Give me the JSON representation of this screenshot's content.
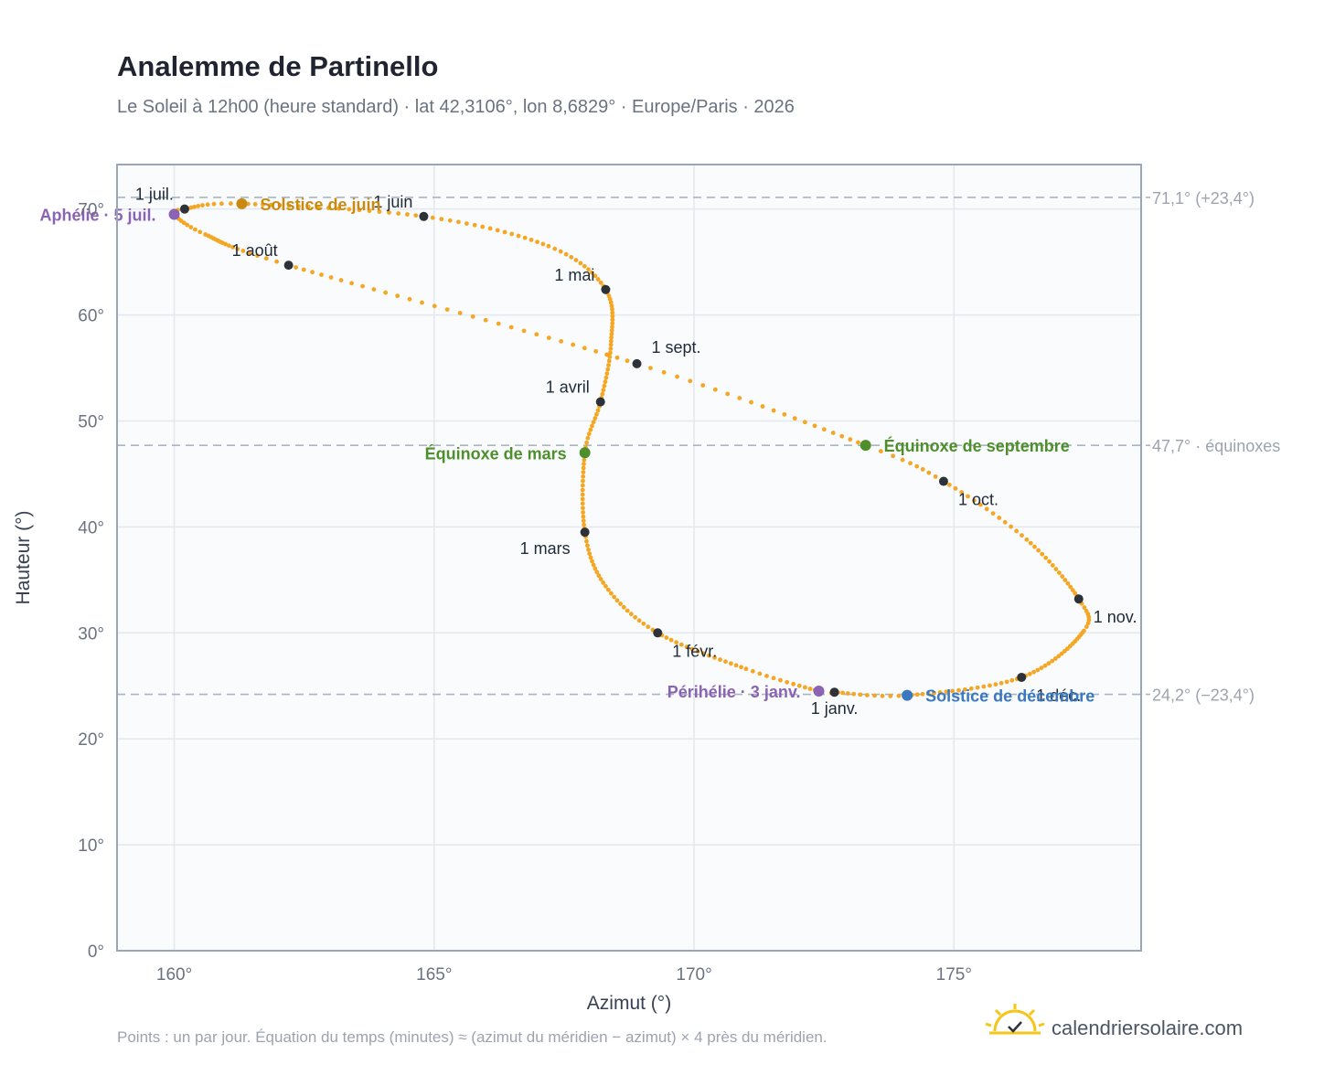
{
  "title": "Analemme de Partinello",
  "subtitle": "Le Soleil à 12h00 (heure standard) · lat 42,3106°, lon 8,6829° · Europe/Paris · 2026",
  "footnote": "Points : un par jour. Équation du temps (minutes) ≈ (azimut du méridien − azimut) × 4 près du méridien.",
  "brand": "calendriersolaire.com",
  "colors": {
    "curve": "#f5a623",
    "month_marker": "#2d3138",
    "aphelion": "#8b63b5",
    "perihelion": "#8b63b5",
    "june_solstice": "#c98a10",
    "december_solstice": "#3a78bf",
    "equinox": "#4e8f2c",
    "reference_line": "#aab4c2",
    "plot_bg": "#f9fbfd",
    "grid": "#e3e8ee",
    "frame": "#9aa5b5",
    "brand_icon": "#f5c518"
  },
  "chart_data": {
    "type": "scatter",
    "xlabel": "Azimut (°)",
    "ylabel": "Hauteur (°)",
    "xlim": [
      158.9,
      178.6
    ],
    "ylim": [
      0,
      74.2
    ],
    "x_ticks": [
      160,
      165,
      170,
      175
    ],
    "x_tick_labels": [
      "160°",
      "165°",
      "170°",
      "175°"
    ],
    "y_ticks": [
      0,
      10,
      20,
      30,
      40,
      50,
      60,
      70
    ],
    "y_tick_labels": [
      "0°",
      "10°",
      "20°",
      "30°",
      "40°",
      "50°",
      "60°",
      "70°"
    ],
    "grid": true,
    "series": [
      {
        "description": "one point per day",
        "anchor_points": [
          {
            "date": "2026-01-01",
            "az": 172.7,
            "alt": 24.4
          },
          {
            "date": "2026-01-03",
            "az": 172.4,
            "alt": 24.5
          },
          {
            "date": "2026-01-15",
            "az": 171.0,
            "alt": 26.6
          },
          {
            "date": "2026-02-01",
            "az": 169.3,
            "alt": 30.0
          },
          {
            "date": "2026-02-15",
            "az": 168.3,
            "alt": 34.4
          },
          {
            "date": "2026-03-01",
            "az": 167.9,
            "alt": 39.5
          },
          {
            "date": "2026-03-20",
            "az": 167.9,
            "alt": 47.0
          },
          {
            "date": "2026-04-01",
            "az": 168.2,
            "alt": 51.8
          },
          {
            "date": "2026-04-15",
            "az": 168.4,
            "alt": 57.2
          },
          {
            "date": "2026-05-01",
            "az": 168.3,
            "alt": 62.4
          },
          {
            "date": "2026-05-15",
            "az": 167.2,
            "alt": 66.5
          },
          {
            "date": "2026-06-01",
            "az": 164.8,
            "alt": 69.3
          },
          {
            "date": "2026-06-21",
            "az": 161.3,
            "alt": 70.5
          },
          {
            "date": "2026-07-01",
            "az": 160.2,
            "alt": 70.0
          },
          {
            "date": "2026-07-05",
            "az": 160.0,
            "alt": 69.5
          },
          {
            "date": "2026-07-15",
            "az": 160.6,
            "alt": 67.6
          },
          {
            "date": "2026-08-01",
            "az": 162.2,
            "alt": 64.7
          },
          {
            "date": "2026-09-01",
            "az": 168.9,
            "alt": 55.4
          },
          {
            "date": "2026-09-22",
            "az": 173.3,
            "alt": 47.7
          },
          {
            "date": "2026-10-01",
            "az": 174.8,
            "alt": 44.3
          },
          {
            "date": "2026-10-15",
            "az": 176.4,
            "alt": 38.8
          },
          {
            "date": "2026-11-01",
            "az": 177.4,
            "alt": 33.2
          },
          {
            "date": "2026-11-10",
            "az": 177.5,
            "alt": 30.2
          },
          {
            "date": "2026-12-01",
            "az": 176.3,
            "alt": 25.8
          },
          {
            "date": "2026-12-21",
            "az": 174.1,
            "alt": 24.1
          },
          {
            "date": "2027-01-01",
            "az": 172.7,
            "alt": 24.4
          }
        ]
      }
    ],
    "month_markers": [
      {
        "label": "1 janv.",
        "az": 172.7,
        "alt": 24.4,
        "anchor": "below"
      },
      {
        "label": "1 févr.",
        "az": 169.3,
        "alt": 30.0,
        "anchor": "below-right"
      },
      {
        "label": "1 mars",
        "az": 167.9,
        "alt": 39.5,
        "anchor": "below-left"
      },
      {
        "label": "1 avril",
        "az": 168.2,
        "alt": 51.8,
        "anchor": "above-left"
      },
      {
        "label": "1 mai",
        "az": 168.3,
        "alt": 62.4,
        "anchor": "above-left"
      },
      {
        "label": "1 juin",
        "az": 164.8,
        "alt": 69.3,
        "anchor": "above-left"
      },
      {
        "label": "1 juil.",
        "az": 160.2,
        "alt": 70.0,
        "anchor": "above-left"
      },
      {
        "label": "1 août",
        "az": 162.2,
        "alt": 64.7,
        "anchor": "above-left"
      },
      {
        "label": "1 sept.",
        "az": 168.9,
        "alt": 55.4,
        "anchor": "above-right"
      },
      {
        "label": "1 oct.",
        "az": 174.8,
        "alt": 44.3,
        "anchor": "below-right"
      },
      {
        "label": "1 nov.",
        "az": 177.4,
        "alt": 33.2,
        "anchor": "below-right"
      },
      {
        "label": "1 déc.",
        "az": 176.3,
        "alt": 25.8,
        "anchor": "below-right"
      }
    ],
    "events": [
      {
        "label": "Aphélie · 5 juil.",
        "az": 160.0,
        "alt": 69.5,
        "color_key": "aphelion",
        "side": "left"
      },
      {
        "label": "Solstice de juin",
        "az": 161.3,
        "alt": 70.5,
        "color_key": "june_solstice",
        "side": "right"
      },
      {
        "label": "Équinoxe de mars",
        "az": 167.9,
        "alt": 47.0,
        "color_key": "equinox",
        "side": "left"
      },
      {
        "label": "Équinoxe de septembre",
        "az": 173.3,
        "alt": 47.7,
        "color_key": "equinox",
        "side": "right"
      },
      {
        "label": "Périhélie · 3 janv.",
        "az": 172.4,
        "alt": 24.5,
        "color_key": "perihelion",
        "side": "left"
      },
      {
        "label": "Solstice de décembre",
        "az": 174.1,
        "alt": 24.1,
        "color_key": "december_solstice",
        "side": "right"
      }
    ],
    "reference_lines": [
      {
        "alt": 71.1,
        "label": "71,1° (+23,4°)"
      },
      {
        "alt": 47.7,
        "label": "47,7° · équinoxes"
      },
      {
        "alt": 24.2,
        "label": "24,2° (−23,4°)"
      }
    ]
  }
}
